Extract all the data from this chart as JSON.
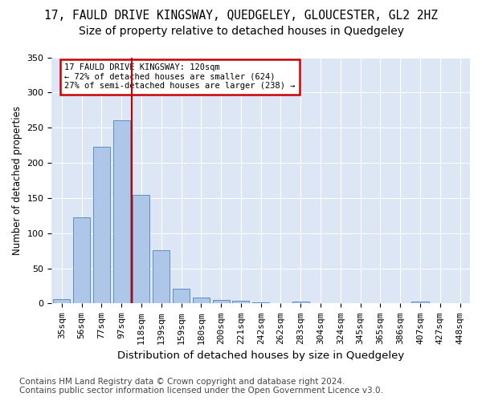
{
  "title": "17, FAULD DRIVE KINGSWAY, QUEDGELEY, GLOUCESTER, GL2 2HZ",
  "subtitle": "Size of property relative to detached houses in Quedgeley",
  "xlabel": "Distribution of detached houses by size in Quedgeley",
  "ylabel": "Number of detached properties",
  "bar_values": [
    6,
    122,
    223,
    261,
    154,
    76,
    21,
    8,
    5,
    4,
    2,
    0,
    3,
    0,
    0,
    0,
    0,
    0,
    3,
    0,
    0
  ],
  "categories": [
    "35sqm",
    "56sqm",
    "77sqm",
    "97sqm",
    "118sqm",
    "139sqm",
    "159sqm",
    "180sqm",
    "200sqm",
    "221sqm",
    "242sqm",
    "262sqm",
    "283sqm",
    "304sqm",
    "324sqm",
    "345sqm",
    "365sqm",
    "386sqm",
    "407sqm",
    "427sqm",
    "448sqm"
  ],
  "bar_color": "#aec6e8",
  "bar_edge_color": "#5a8fc0",
  "vline_color": "#cc0000",
  "vline_x": 3.5,
  "annotation_line1": "17 FAULD DRIVE KINGSWAY: 120sqm",
  "annotation_line2": "← 72% of detached houses are smaller (624)",
  "annotation_line3": "27% of semi-detached houses are larger (238) →",
  "annotation_box_color": "#cc0000",
  "ylim": [
    0,
    350
  ],
  "yticks": [
    0,
    50,
    100,
    150,
    200,
    250,
    300,
    350
  ],
  "plot_bg_color": "#dce6f5",
  "footer_line1": "Contains HM Land Registry data © Crown copyright and database right 2024.",
  "footer_line2": "Contains public sector information licensed under the Open Government Licence v3.0.",
  "title_fontsize": 10.5,
  "subtitle_fontsize": 10,
  "xlabel_fontsize": 9.5,
  "ylabel_fontsize": 8.5,
  "tick_fontsize": 8,
  "footer_fontsize": 7.5
}
